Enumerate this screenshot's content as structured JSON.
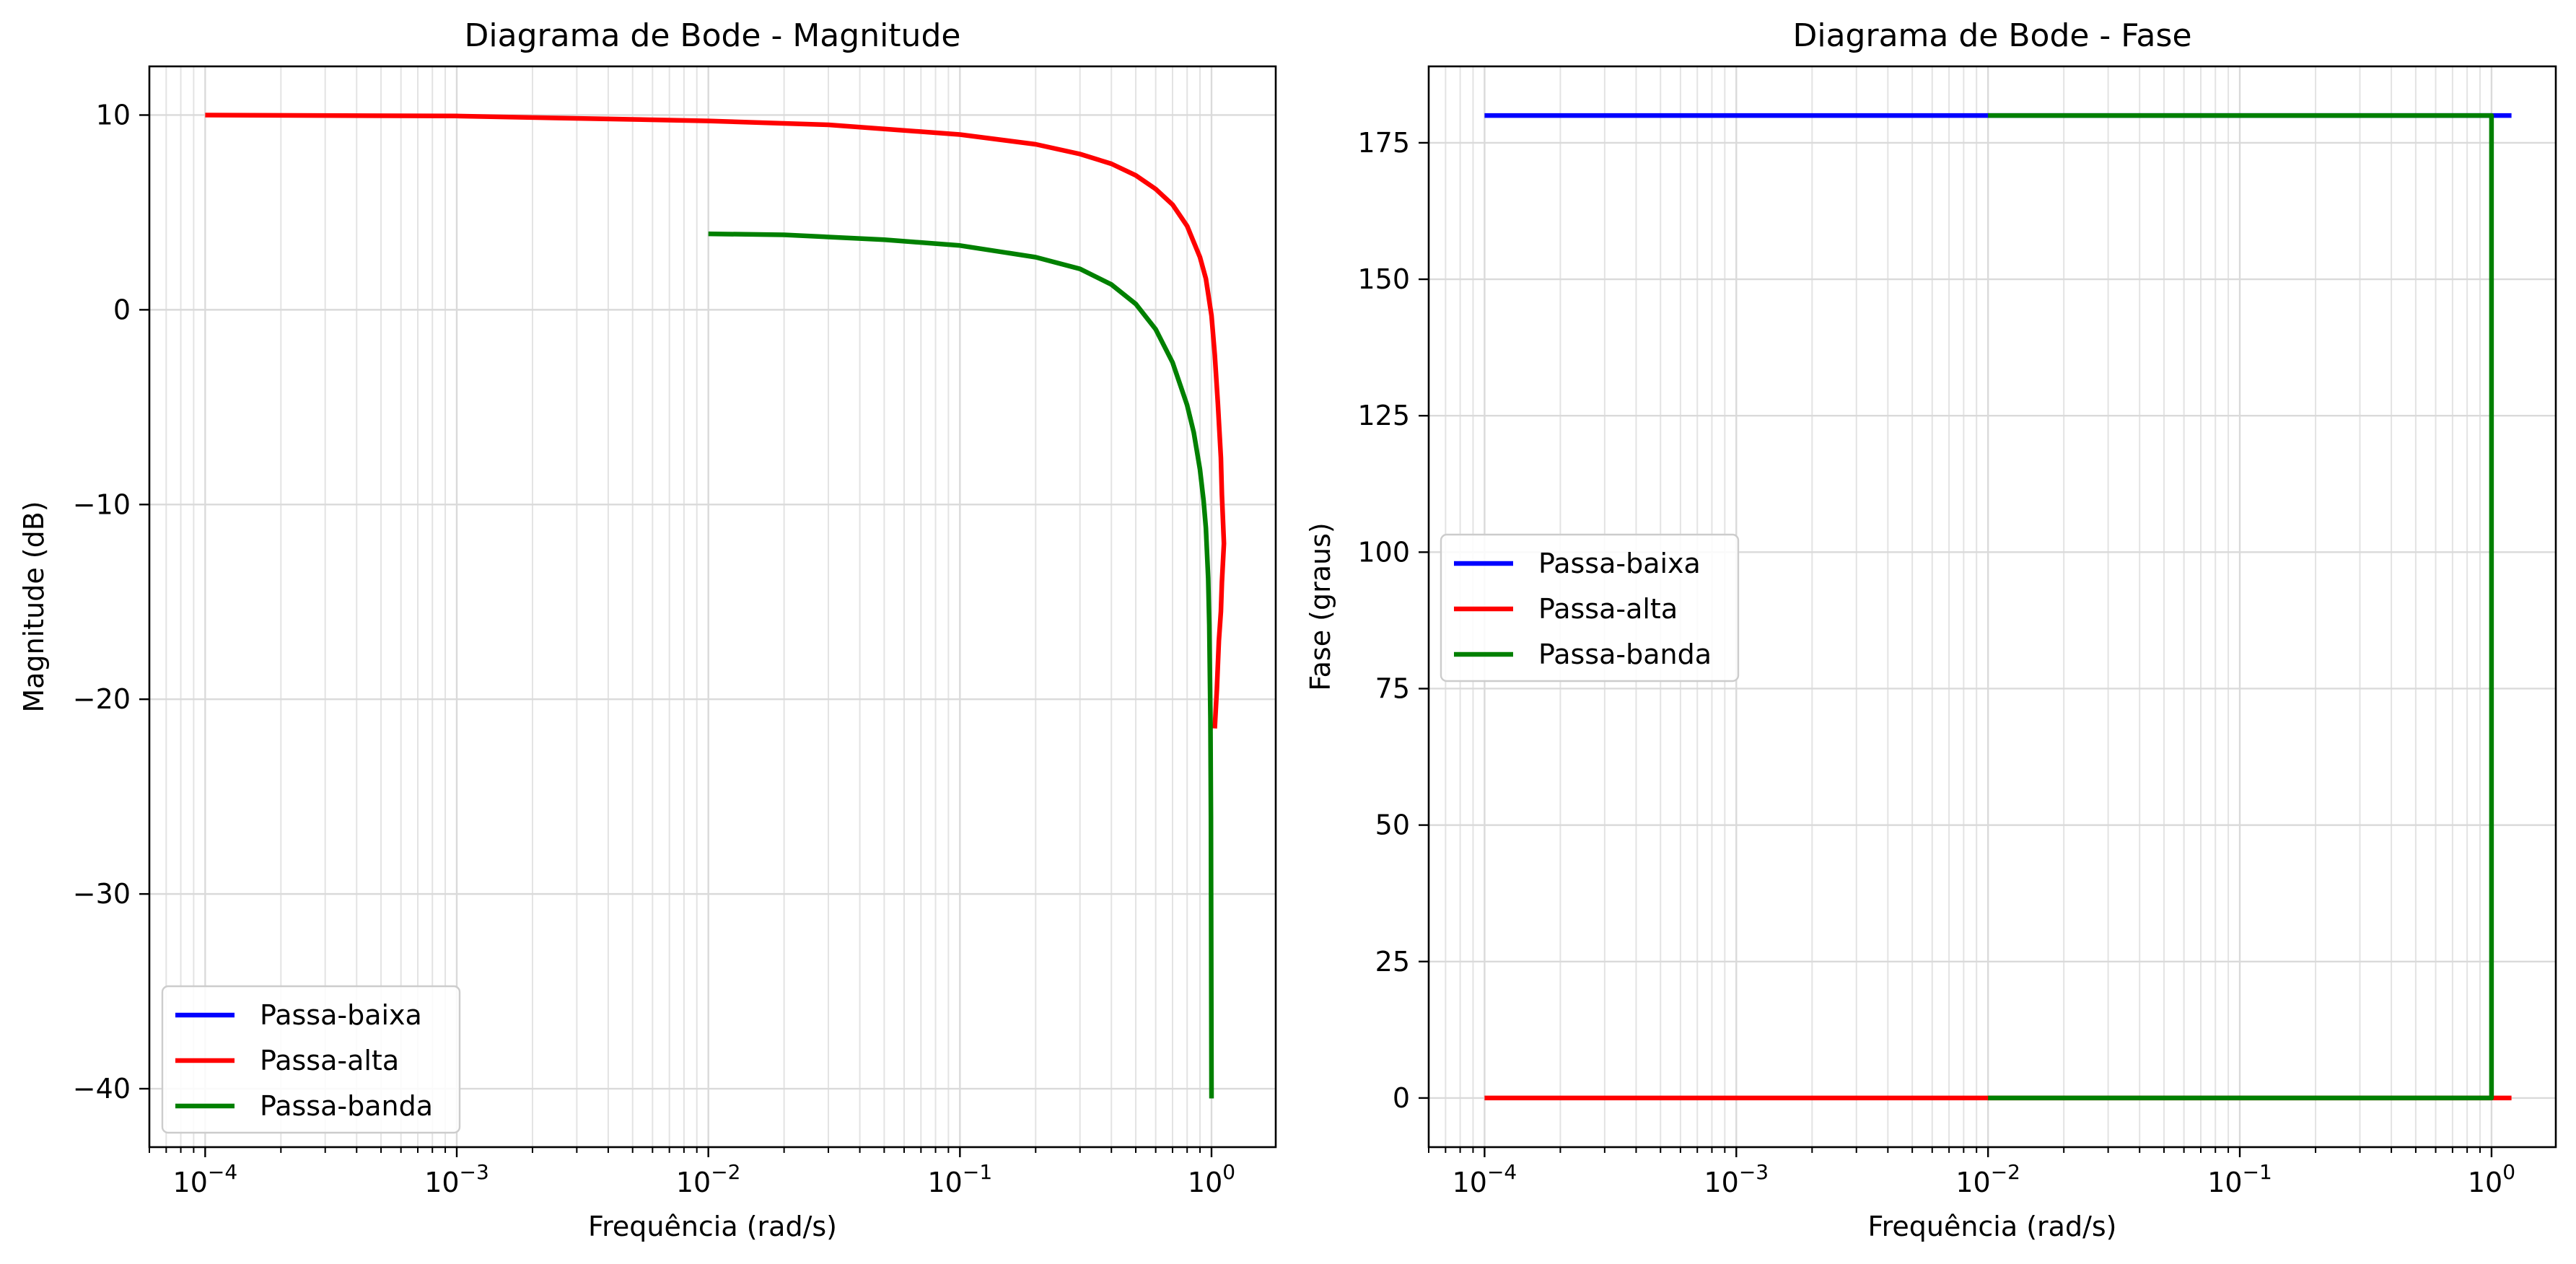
{
  "chart_data": [
    {
      "type": "line",
      "title": "Diagrama de Bode - Magnitude",
      "xlabel": "Frequência (rad/s)",
      "ylabel": "Magnitude (dB)",
      "xscale": "log",
      "xlim": [
        6e-05,
        1.8
      ],
      "ylim": [
        -43,
        12.5
      ],
      "x_ticks": [
        {
          "value": 0.0001,
          "label": "10",
          "exp": "−4"
        },
        {
          "value": 0.001,
          "label": "10",
          "exp": "−3"
        },
        {
          "value": 0.01,
          "label": "10",
          "exp": "−2"
        },
        {
          "value": 0.1,
          "label": "10",
          "exp": "−1"
        },
        {
          "value": 1,
          "label": "10",
          "exp": "0"
        }
      ],
      "y_ticks": [
        {
          "value": 10,
          "label": "10"
        },
        {
          "value": 0,
          "label": "0"
        },
        {
          "value": -10,
          "label": "−10"
        },
        {
          "value": -20,
          "label": "−20"
        },
        {
          "value": -30,
          "label": "−30"
        },
        {
          "value": -40,
          "label": "−40"
        }
      ],
      "grid": true,
      "legend": {
        "position": "lower left",
        "entries": [
          "Passa-baixa",
          "Passa-alta",
          "Passa-banda"
        ]
      },
      "series": [
        {
          "name": "Passa-baixa",
          "color": "#0000ff",
          "x": [],
          "y": []
        },
        {
          "name": "Passa-alta",
          "color": "#ff0000",
          "x": [
            0.0001,
            0.001,
            0.01,
            0.03,
            0.1,
            0.2,
            0.3,
            0.4,
            0.5,
            0.6,
            0.7,
            0.8,
            0.9,
            0.95,
            1.0,
            1.03,
            1.06,
            1.09,
            1.1,
            1.12,
            1.1,
            1.09,
            1.07,
            1.05,
            1.03
          ],
          "y": [
            10,
            9.95,
            9.7,
            9.5,
            9.0,
            8.5,
            8.0,
            7.5,
            6.9,
            6.2,
            5.4,
            4.3,
            2.7,
            1.6,
            -0.3,
            -2.3,
            -4.8,
            -7.6,
            -9.5,
            -12.0,
            -14.0,
            -15.5,
            -17.0,
            -19.5,
            -21.5
          ]
        },
        {
          "name": "Passa-banda",
          "color": "#008000",
          "x": [
            0.01,
            0.02,
            0.05,
            0.1,
            0.2,
            0.3,
            0.4,
            0.5,
            0.6,
            0.7,
            0.8,
            0.85,
            0.9,
            0.93,
            0.95,
            0.97,
            0.98,
            0.99,
            0.995,
            1.0
          ],
          "y": [
            3.9,
            3.85,
            3.6,
            3.3,
            2.7,
            2.1,
            1.3,
            0.3,
            -1.0,
            -2.7,
            -4.9,
            -6.3,
            -8.2,
            -9.8,
            -11.2,
            -13.8,
            -16.2,
            -21.0,
            -26.0,
            -40.5
          ]
        }
      ]
    },
    {
      "type": "line",
      "title": "Diagrama de Bode - Fase",
      "xlabel": "Frequência (rad/s)",
      "ylabel": "Fase (graus)",
      "xscale": "log",
      "xlim": [
        6e-05,
        1.8
      ],
      "ylim": [
        -9,
        189
      ],
      "x_ticks": [
        {
          "value": 0.0001,
          "label": "10",
          "exp": "−4"
        },
        {
          "value": 0.001,
          "label": "10",
          "exp": "−3"
        },
        {
          "value": 0.01,
          "label": "10",
          "exp": "−2"
        },
        {
          "value": 0.1,
          "label": "10",
          "exp": "−1"
        },
        {
          "value": 1,
          "label": "10",
          "exp": "0"
        }
      ],
      "y_ticks": [
        {
          "value": 175,
          "label": "175"
        },
        {
          "value": 150,
          "label": "150"
        },
        {
          "value": 125,
          "label": "125"
        },
        {
          "value": 100,
          "label": "100"
        },
        {
          "value": 75,
          "label": "75"
        },
        {
          "value": 50,
          "label": "50"
        },
        {
          "value": 25,
          "label": "25"
        },
        {
          "value": 0,
          "label": "0"
        }
      ],
      "grid": true,
      "legend": {
        "position": "center left",
        "entries": [
          "Passa-baixa",
          "Passa-alta",
          "Passa-banda"
        ]
      },
      "series": [
        {
          "name": "Passa-baixa",
          "color": "#0000ff",
          "x": [
            0.0001,
            1.2
          ],
          "y": [
            180,
            180
          ]
        },
        {
          "name": "Passa-alta",
          "color": "#ff0000",
          "x": [
            0.0001,
            1.2
          ],
          "y": [
            0,
            0
          ]
        },
        {
          "name": "Passa-banda",
          "color": "#008000",
          "x": [
            0.01,
            1.0,
            1.0,
            1.0,
            0.01
          ],
          "y": [
            180,
            180,
            90,
            0,
            0
          ]
        }
      ]
    }
  ]
}
